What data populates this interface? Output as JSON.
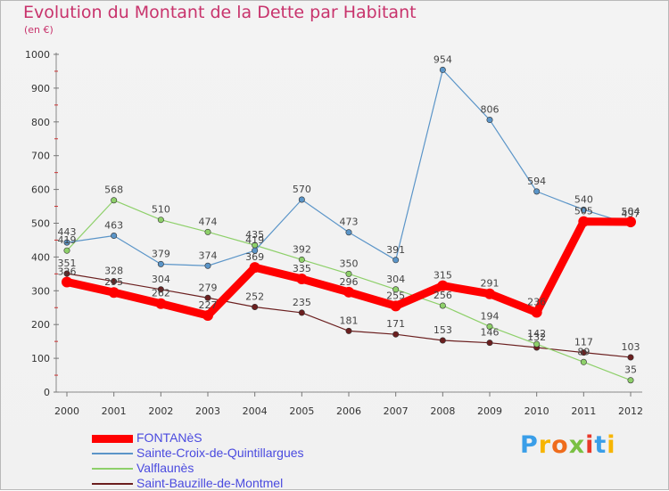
{
  "chart_data": {
    "type": "line",
    "title": "Evolution du Montant de la Dette par Habitant",
    "subtitle": "(en €)",
    "xlabel": "",
    "ylabel": "",
    "ylim": [
      0,
      1000
    ],
    "yticks": [
      "0",
      "100",
      "200",
      "300",
      "400",
      "500",
      "600",
      "700",
      "800",
      "900",
      "1000"
    ],
    "grid": false,
    "legend_position": "bottom-left",
    "categories": [
      "2000",
      "2001",
      "2002",
      "2003",
      "2004",
      "2005",
      "2006",
      "2007",
      "2008",
      "2009",
      "2010",
      "2011",
      "2012"
    ],
    "series": [
      {
        "name": "Saint-Bauzille-de-Montmel",
        "color": "#6b1f1f",
        "width": 1.2,
        "values": [
          351,
          328,
          304,
          279,
          252,
          235,
          181,
          171,
          153,
          146,
          132,
          117,
          103
        ],
        "labels": [
          "351",
          "328",
          "304",
          "279",
          "252",
          "235",
          "181",
          "171",
          "153",
          "146",
          "132",
          "117",
          "103"
        ]
      },
      {
        "name": "Valflaunès",
        "color": "#8ed06a",
        "width": 1.2,
        "values": [
          419,
          568,
          510,
          474,
          435,
          392,
          350,
          304,
          256,
          194,
          142,
          89,
          35
        ],
        "labels": [
          "419",
          "568",
          "510",
          "474",
          "435",
          "392",
          "350",
          "304",
          "256",
          "194",
          "142",
          "89",
          "35"
        ]
      },
      {
        "name": "Sainte-Croix-de-Quintillargues",
        "color": "#5b95c8",
        "width": 1.2,
        "values": [
          443,
          463,
          379,
          374,
          419,
          570,
          473,
          391,
          954,
          806,
          594,
          540,
          497
        ],
        "labels": [
          "443",
          "463",
          "379",
          "374",
          "419",
          "570",
          "473",
          "391",
          "954",
          "806",
          "594",
          "540",
          "497"
        ]
      },
      {
        "name": "FONTANèS",
        "color": "#ff0000",
        "width": 9,
        "values": [
          326,
          295,
          262,
          227,
          369,
          335,
          296,
          255,
          315,
          291,
          236,
          505,
          504
        ],
        "labels": [
          "326",
          "295",
          "262",
          "227",
          "369",
          "335",
          "296",
          "255",
          "315",
          "291",
          "236",
          "505",
          "504"
        ]
      }
    ]
  },
  "legend": {
    "items": [
      {
        "label": "FONTANèS",
        "color": "#ff0000"
      },
      {
        "label": "Sainte-Croix-de-Quintillargues",
        "color": "#5b95c8"
      },
      {
        "label": "Valflaunès",
        "color": "#8ed06a"
      },
      {
        "label": "Saint-Bauzille-de-Montmel",
        "color": "#6b1f1f"
      }
    ]
  },
  "logo": {
    "text": "Proxiti",
    "letter_colors": [
      "#3a9ee8",
      "#f7b500",
      "#ef6c1c",
      "#7ac043",
      "#e8392a",
      "#3a9ee8",
      "#f7b500"
    ]
  }
}
